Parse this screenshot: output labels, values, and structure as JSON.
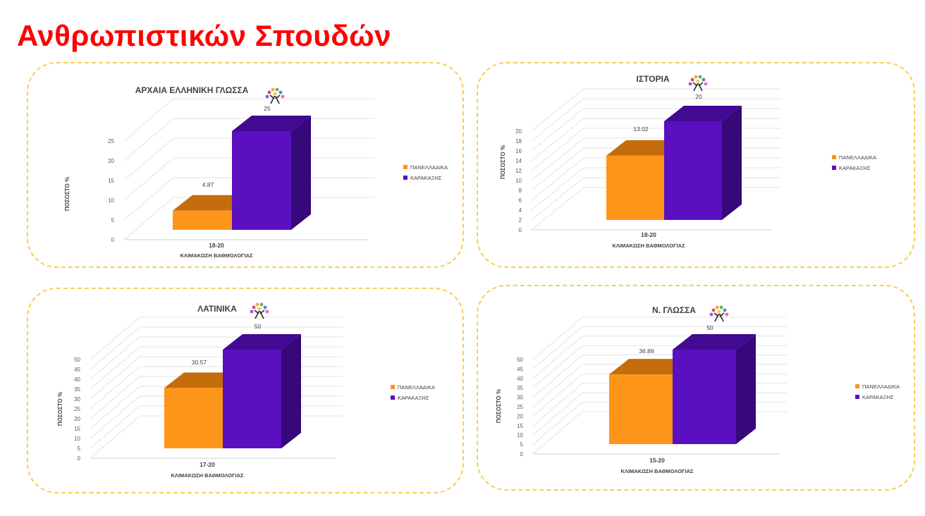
{
  "page": {
    "title": "Ανθρωπιστικών Σπουδών"
  },
  "colors": {
    "series1": {
      "front": "#fd9518",
      "top": "#c46d0c",
      "side": "#b86608"
    },
    "series2": {
      "front": "#5a0fc0",
      "top": "#420a93",
      "side": "#36087a"
    },
    "title": "#ff0000",
    "panel_border": "#f7cf52"
  },
  "chart_data": [
    {
      "type": "bar",
      "title": "ΑΡΧΑΙΑ ΕΛΛΗΝΙΚΗ ΓΛΩΣΣΑ",
      "categories": [
        "18-20"
      ],
      "xlabel": "ΚΛΙΜΑΚΩΣΗ ΒΑΘΜΟΛΟΓΙΑΣ",
      "ylabel": "ΠΟΣΟΣΤΟ %",
      "ylim": [
        0,
        25
      ],
      "yticks": [
        0,
        5,
        10,
        15,
        20,
        25
      ],
      "series": [
        {
          "name": "ΠΑΝΕΛΛΑΔΙΚΑ",
          "values": [
            4.87
          ],
          "labels": [
            "4.87"
          ]
        },
        {
          "name": "ΚΑΡΑΚΑΞΗΣ",
          "values": [
            25
          ],
          "labels": [
            "25"
          ]
        }
      ],
      "legend": "right",
      "grid": true
    },
    {
      "type": "bar",
      "title": "ΙΣΤΟΡΙΑ",
      "categories": [
        "18-20"
      ],
      "xlabel": "ΚΛΙΜΑΚΩΣΗ ΒΑΘΜΟΛΟΓΙΑΣ",
      "ylabel": "ΠΟΣΟΣΤΟ %",
      "ylim": [
        0,
        20
      ],
      "yticks": [
        0,
        2,
        4,
        6,
        8,
        10,
        12,
        14,
        16,
        18,
        20
      ],
      "series": [
        {
          "name": "ΠΑΝΕΛΛΑΔΙΚΑ",
          "values": [
            13.02
          ],
          "labels": [
            "13.02"
          ]
        },
        {
          "name": "ΚΑΡΑΚΑΞΗΣ",
          "values": [
            20
          ],
          "labels": [
            "20"
          ]
        }
      ],
      "legend": "right",
      "grid": true
    },
    {
      "type": "bar",
      "title": "ΛΑΤΙΝΙΚΑ",
      "categories": [
        "17-20"
      ],
      "xlabel": "ΚΛΙΜΑΚΩΣΗ ΒΑΘΜΟΛΟΓΙΑΣ",
      "ylabel": "ΠΟΣΟΣΤΟ %",
      "ylim": [
        0,
        50
      ],
      "yticks": [
        0,
        5,
        10,
        15,
        20,
        25,
        30,
        35,
        40,
        45,
        50
      ],
      "series": [
        {
          "name": "ΠΑΝΕΛΛΑΔΙΚΑ",
          "values": [
            30.57
          ],
          "labels": [
            "30.57"
          ]
        },
        {
          "name": "ΚΑΡΑΚΑΞΗΣ",
          "values": [
            50
          ],
          "labels": [
            "50"
          ]
        }
      ],
      "legend": "right",
      "grid": true
    },
    {
      "type": "bar",
      "title": "Ν. ΓΛΩΣΣΑ",
      "categories": [
        "15-20"
      ],
      "xlabel": "ΚΛΙΜΑΚΩΣΗ ΒΑΘΜΟΛΟΓΙΑΣ",
      "ylabel": "ΠΟΣΟΣΤΟ %",
      "ylim": [
        0,
        50
      ],
      "yticks": [
        0,
        5,
        10,
        15,
        20,
        25,
        30,
        35,
        40,
        45,
        50
      ],
      "series": [
        {
          "name": "ΠΑΝΕΛΛΑΔΙΚΑ",
          "values": [
            36.89
          ],
          "labels": [
            "36.89"
          ]
        },
        {
          "name": "ΚΑΡΑΚΑΞΗΣ",
          "values": [
            50
          ],
          "labels": [
            "50"
          ]
        }
      ],
      "legend": "right",
      "grid": true
    }
  ]
}
